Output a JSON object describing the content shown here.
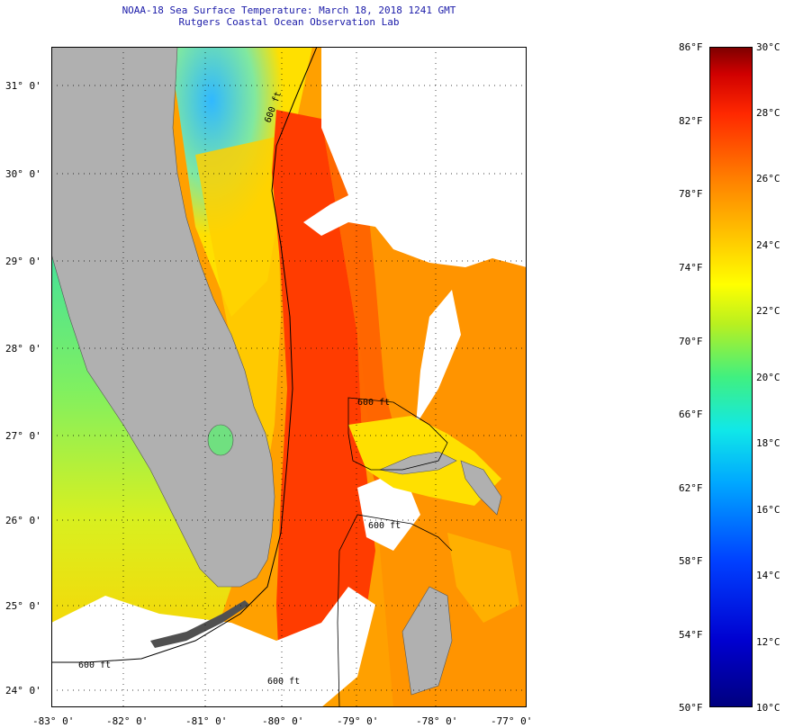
{
  "header": {
    "title_line1": "NOAA-18 Sea Surface Temperature:  March 18, 2018 1241 GMT",
    "title_line2": "Rutgers Coastal Ocean Observation Lab"
  },
  "map": {
    "lat_labels": [
      "31° 0'",
      "30° 0'",
      "29° 0'",
      "28° 0'",
      "27° 0'",
      "26° 0'",
      "25° 0'",
      "24° 0'"
    ],
    "lon_labels": [
      "-83° 0'",
      "-82° 0'",
      "-81° 0'",
      "-80° 0'",
      "-79° 0'",
      "-78° 0'",
      "-77° 0'"
    ],
    "contour_labels": [
      "600 ft",
      "600 ft",
      "600 ft",
      "600 ft",
      "600 ft"
    ],
    "colors": {
      "land": "#b0b0b0",
      "cloud": "#ffffff",
      "gulf_stream": "#ff3c00",
      "shelf": "#ffb400"
    }
  },
  "legend": {
    "fahrenheit": [
      "86°F",
      "82°F",
      "78°F",
      "74°F",
      "70°F",
      "66°F",
      "62°F",
      "58°F",
      "54°F",
      "50°F"
    ],
    "celsius": [
      "30°C",
      "28°C",
      "26°C",
      "24°C",
      "22°C",
      "20°C",
      "18°C",
      "16°C",
      "14°C",
      "12°C",
      "10°C"
    ]
  }
}
